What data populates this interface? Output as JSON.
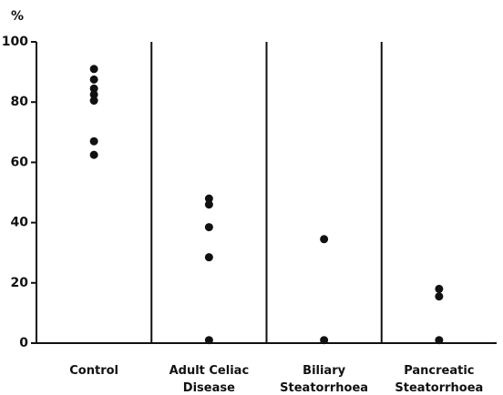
{
  "chart_data": {
    "type": "strip",
    "y_label": "%",
    "categories": [
      "Control",
      "Adult Celiac Disease",
      "Biliary Steatorrhoea",
      "Pancreatic Steatorrhoea"
    ],
    "values": [
      [
        91,
        87.5,
        84.5,
        82.5,
        80.5,
        67,
        62.5
      ],
      [
        48,
        46,
        38.5,
        28.5,
        1
      ],
      [
        34.5,
        1
      ],
      [
        18,
        15.5,
        1
      ]
    ],
    "color": "#111111",
    "separators": true,
    "ylim": [
      0,
      100
    ],
    "yticks": [
      0,
      20,
      40,
      60,
      80,
      100
    ]
  }
}
